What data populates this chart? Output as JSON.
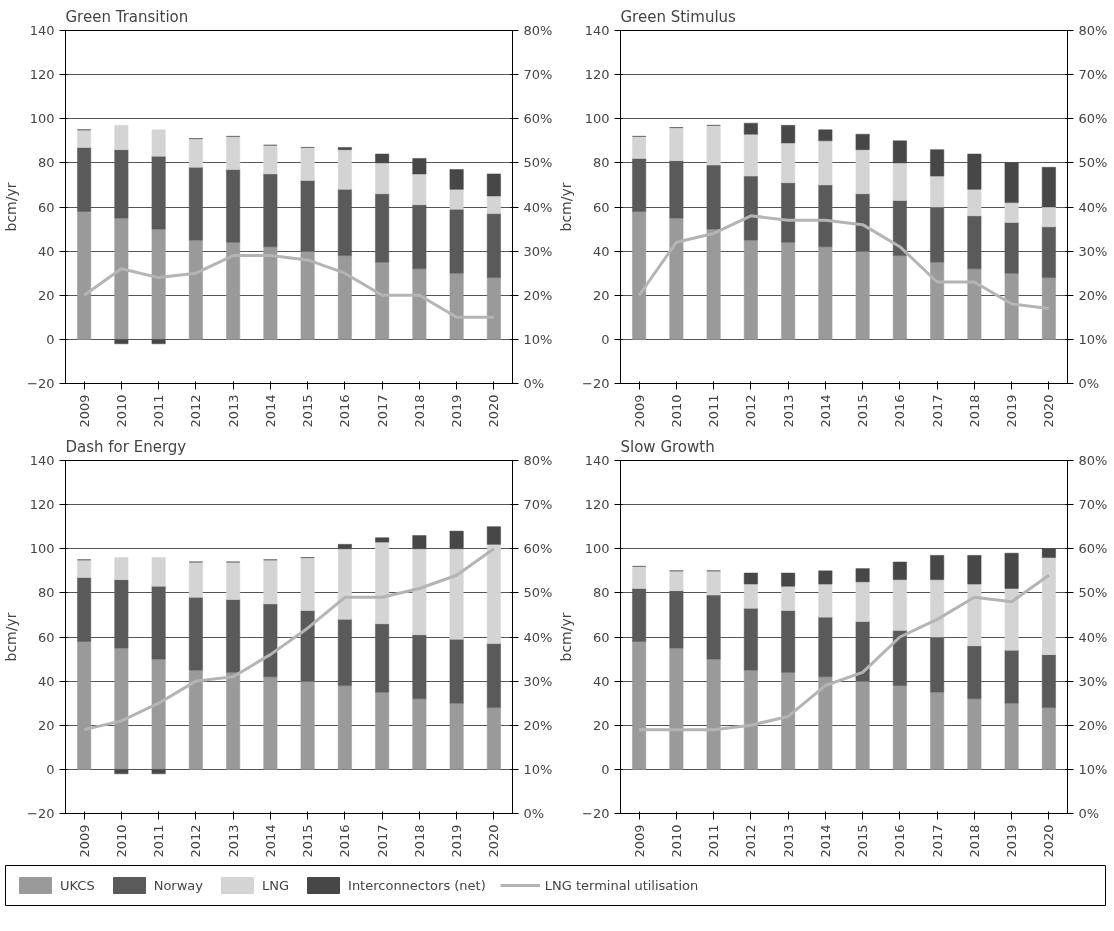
{
  "chart_data": [
    {
      "type": "bar",
      "title": "Green Transition",
      "ylabel": "bcm/yr",
      "stacked": true,
      "grid": "y",
      "legend": "bottom",
      "categories": [
        "2009",
        "2010",
        "2011",
        "2012",
        "2013",
        "2014",
        "2015",
        "2016",
        "2017",
        "2018",
        "2019",
        "2020"
      ],
      "ylim": [
        -20,
        140
      ],
      "yticks": [
        -20,
        0,
        20,
        40,
        60,
        80,
        100,
        120,
        140
      ],
      "y2lim": [
        0,
        80
      ],
      "y2ticks": [
        {
          "value": 0,
          "label": "0%"
        },
        {
          "value": 10,
          "label": "10%"
        },
        {
          "value": 20,
          "label": "20%"
        },
        {
          "value": 30,
          "label": "30%"
        },
        {
          "value": 40,
          "label": "40%"
        },
        {
          "value": 50,
          "label": "50%"
        },
        {
          "value": 60,
          "label": "60%"
        },
        {
          "value": 70,
          "label": "70%"
        },
        {
          "value": 80,
          "label": "80%"
        }
      ],
      "series": [
        {
          "name": "UKCS",
          "color": "#9a9a9a",
          "values": [
            58,
            55,
            50,
            45,
            44,
            42,
            40,
            38,
            35,
            32,
            30,
            28
          ]
        },
        {
          "name": "Norway",
          "color": "#5a5a5a",
          "values": [
            29,
            31,
            33,
            33,
            33,
            33,
            32,
            30,
            31,
            29,
            29,
            29
          ]
        },
        {
          "name": "LNG",
          "color": "#d4d4d4",
          "values": [
            8,
            11,
            12,
            13,
            15,
            13,
            15,
            18,
            14,
            14,
            9,
            8
          ]
        },
        {
          "name": "Interconnectors (net)",
          "color": "#474747",
          "values": [
            0,
            -2,
            -2,
            0,
            0,
            0,
            0,
            1,
            4,
            7,
            9,
            10
          ]
        },
        {
          "name": "LNG terminal utilisation",
          "type": "line",
          "axis": "y2",
          "color": "#b4b4b4",
          "values": [
            20,
            26,
            24,
            25,
            29,
            29,
            28,
            25,
            20,
            20,
            15,
            15
          ]
        }
      ]
    },
    {
      "type": "bar",
      "title": "Green Stimulus",
      "ylabel": "bcm/yr",
      "stacked": true,
      "grid": "y",
      "categories": [
        "2009",
        "2010",
        "2011",
        "2012",
        "2013",
        "2014",
        "2015",
        "2016",
        "2017",
        "2018",
        "2019",
        "2020"
      ],
      "ylim": [
        -20,
        140
      ],
      "yticks": [
        -20,
        0,
        20,
        40,
        60,
        80,
        100,
        120,
        140
      ],
      "y2lim": [
        0,
        80
      ],
      "y2ticks": [
        {
          "value": 0,
          "label": "0%"
        },
        {
          "value": 10,
          "label": "10%"
        },
        {
          "value": 20,
          "label": "20%"
        },
        {
          "value": 30,
          "label": "30%"
        },
        {
          "value": 40,
          "label": "40%"
        },
        {
          "value": 50,
          "label": "50%"
        },
        {
          "value": 60,
          "label": "60%"
        },
        {
          "value": 70,
          "label": "70%"
        },
        {
          "value": 80,
          "label": "80%"
        }
      ],
      "series": [
        {
          "color": "#9a9a9a",
          "values": [
            58,
            55,
            50,
            45,
            44,
            42,
            40,
            38,
            35,
            32,
            30,
            28
          ]
        },
        {
          "color": "#5a5a5a",
          "values": [
            24,
            26,
            29,
            29,
            27,
            28,
            26,
            25,
            25,
            24,
            23,
            23
          ]
        },
        {
          "color": "#d4d4d4",
          "values": [
            10,
            15,
            18,
            19,
            18,
            20,
            20,
            17,
            14,
            12,
            9,
            9
          ]
        },
        {
          "color": "#474747",
          "values": [
            0,
            0,
            0,
            5,
            8,
            5,
            7,
            10,
            12,
            16,
            18,
            18
          ]
        },
        {
          "type": "line",
          "axis": "y2",
          "color": "#b4b4b4",
          "values": [
            20,
            32,
            34,
            38,
            37,
            37,
            36,
            31,
            23,
            23,
            18,
            17
          ]
        }
      ]
    },
    {
      "type": "bar",
      "title": "Dash for Energy",
      "ylabel": "bcm/yr",
      "stacked": true,
      "grid": "y",
      "categories": [
        "2009",
        "2010",
        "2011",
        "2012",
        "2013",
        "2014",
        "2015",
        "2016",
        "2017",
        "2018",
        "2019",
        "2020"
      ],
      "ylim": [
        -20,
        140
      ],
      "yticks": [
        -20,
        0,
        20,
        40,
        60,
        80,
        100,
        120,
        140
      ],
      "y2lim": [
        0,
        80
      ],
      "y2ticks": [
        {
          "value": 0,
          "label": "0%"
        },
        {
          "value": 10,
          "label": "10%"
        },
        {
          "value": 20,
          "label": "20%"
        },
        {
          "value": 30,
          "label": "30%"
        },
        {
          "value": 40,
          "label": "40%"
        },
        {
          "value": 50,
          "label": "50%"
        },
        {
          "value": 60,
          "label": "60%"
        },
        {
          "value": 70,
          "label": "70%"
        },
        {
          "value": 80,
          "label": "80%"
        }
      ],
      "series": [
        {
          "color": "#9a9a9a",
          "values": [
            58,
            55,
            50,
            45,
            44,
            42,
            40,
            38,
            35,
            32,
            30,
            28
          ]
        },
        {
          "color": "#5a5a5a",
          "values": [
            29,
            31,
            33,
            33,
            33,
            33,
            32,
            30,
            31,
            29,
            29,
            29
          ]
        },
        {
          "color": "#d4d4d4",
          "values": [
            8,
            10,
            13,
            16,
            17,
            20,
            24,
            32,
            37,
            39,
            41,
            45
          ]
        },
        {
          "color": "#474747",
          "values": [
            0,
            -2,
            -2,
            0,
            0,
            0,
            0,
            2,
            2,
            6,
            8,
            8
          ]
        },
        {
          "type": "line",
          "axis": "y2",
          "color": "#b4b4b4",
          "values": [
            19,
            21,
            25,
            30,
            31,
            36,
            42,
            49,
            49,
            51,
            54,
            60
          ]
        }
      ]
    },
    {
      "type": "bar",
      "title": "Slow Growth",
      "ylabel": "bcm/yr",
      "stacked": true,
      "grid": "y",
      "categories": [
        "2009",
        "2010",
        "2011",
        "2012",
        "2013",
        "2014",
        "2015",
        "2016",
        "2017",
        "2018",
        "2019",
        "2020"
      ],
      "ylim": [
        -20,
        140
      ],
      "yticks": [
        -20,
        0,
        20,
        40,
        60,
        80,
        100,
        120,
        140
      ],
      "y2lim": [
        0,
        80
      ],
      "y2ticks": [
        {
          "value": 0,
          "label": "0%"
        },
        {
          "value": 10,
          "label": "10%"
        },
        {
          "value": 20,
          "label": "20%"
        },
        {
          "value": 30,
          "label": "30%"
        },
        {
          "value": 40,
          "label": "40%"
        },
        {
          "value": 50,
          "label": "50%"
        },
        {
          "value": 60,
          "label": "60%"
        },
        {
          "value": 70,
          "label": "70%"
        },
        {
          "value": 80,
          "label": "80%"
        }
      ],
      "series": [
        {
          "color": "#9a9a9a",
          "values": [
            58,
            55,
            50,
            45,
            44,
            42,
            40,
            38,
            35,
            32,
            30,
            28
          ]
        },
        {
          "color": "#5a5a5a",
          "values": [
            24,
            26,
            29,
            28,
            28,
            27,
            27,
            25,
            25,
            24,
            24,
            24
          ]
        },
        {
          "color": "#d4d4d4",
          "values": [
            10,
            9,
            11,
            11,
            11,
            15,
            18,
            23,
            26,
            28,
            28,
            44
          ]
        },
        {
          "color": "#474747",
          "values": [
            0,
            0,
            0,
            5,
            6,
            6,
            6,
            8,
            11,
            13,
            16,
            4
          ]
        },
        {
          "type": "line",
          "axis": "y2",
          "color": "#b4b4b4",
          "values": [
            19,
            19,
            19,
            20,
            22,
            29,
            32,
            40,
            44,
            49,
            48,
            54
          ]
        }
      ]
    }
  ]
}
